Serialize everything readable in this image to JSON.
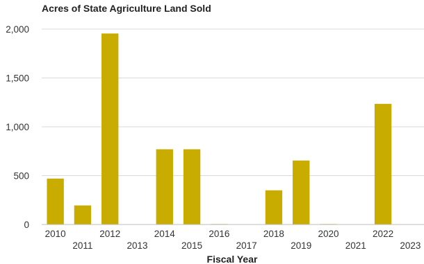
{
  "chart_data": {
    "type": "bar",
    "title": "Acres of State Agriculture Land Sold",
    "xlabel": "Fiscal Year",
    "ylabel": "",
    "categories": [
      "2010",
      "2011",
      "2012",
      "2013",
      "2014",
      "2015",
      "2016",
      "2017",
      "2018",
      "2019",
      "2020",
      "2021",
      "2022",
      "2023"
    ],
    "values": [
      470,
      195,
      1955,
      0,
      770,
      770,
      5,
      0,
      350,
      655,
      5,
      0,
      1235,
      0
    ],
    "ylim": [
      0,
      2000
    ],
    "yticks": [
      0,
      500,
      1000,
      1500,
      2000
    ],
    "ytick_labels": [
      "0",
      "500",
      "1,000",
      "1,500",
      "2,000"
    ],
    "grid": true,
    "legend": "none",
    "bar_color": "#c8ad00"
  }
}
